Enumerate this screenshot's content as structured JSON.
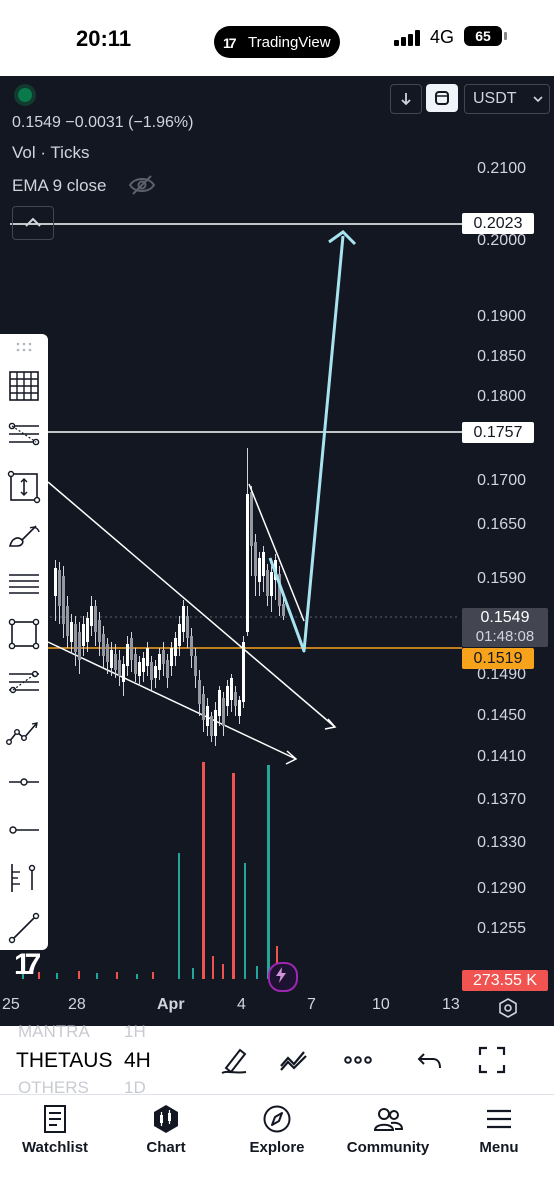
{
  "status_bar": {
    "time": "20:11",
    "app_pill": "TradingView",
    "network": "4G",
    "battery": "65"
  },
  "chart": {
    "legend": {
      "price_line": "0.1549 −0.0031 (−1.96%)",
      "volume_label": "Vol · Ticks",
      "ema_label": "EMA 9 close"
    },
    "currency_select": "USDT",
    "price_axis": [
      "0.2100",
      "0.2000",
      "0.1900",
      "0.1850",
      "0.1800",
      "0.1700",
      "0.1650",
      "0.1590",
      "0.1490",
      "0.1450",
      "0.1410",
      "0.1370",
      "0.1330",
      "0.1290",
      "0.1255"
    ],
    "price_tags": {
      "resistance_high": "0.2023",
      "resistance_mid": "0.1757",
      "last_price": "0.1549",
      "countdown": "01:48:08",
      "support": "0.1519",
      "volume": "273.55 K"
    },
    "time_axis": [
      "25",
      "28",
      "Apr",
      "4",
      "7",
      "10",
      "13"
    ],
    "colors": {
      "background": "#131722",
      "support_line": "#f7a21b",
      "projection": "#a8e4f0",
      "up_volume": "#26a69a",
      "down_volume": "#ef5350",
      "volume_tag": "#f05350"
    }
  },
  "drawing_toolbar": [
    "grid-icon",
    "fib-retracement-icon",
    "measure-icon",
    "brush-icon",
    "horizontal-lines-icon",
    "rectangle-icon",
    "pitchfork-icon",
    "trend-pattern-icon",
    "horizontal-ray-icon",
    "horizontal-line-icon",
    "long-position-icon",
    "trend-line-icon"
  ],
  "symbol_bar": {
    "symbol": "THETAUS",
    "interval": "4H",
    "ghost_above": "MANTRA",
    "ghost_above_interval": "1H",
    "ghost_below": "OTHERS",
    "ghost_below_interval": "1D"
  },
  "tabs": [
    {
      "label": "Watchlist",
      "icon": "watchlist-icon"
    },
    {
      "label": "Chart",
      "icon": "chart-icon"
    },
    {
      "label": "Explore",
      "icon": "compass-icon"
    },
    {
      "label": "Community",
      "icon": "community-icon"
    },
    {
      "label": "Menu",
      "icon": "menu-icon"
    }
  ]
}
